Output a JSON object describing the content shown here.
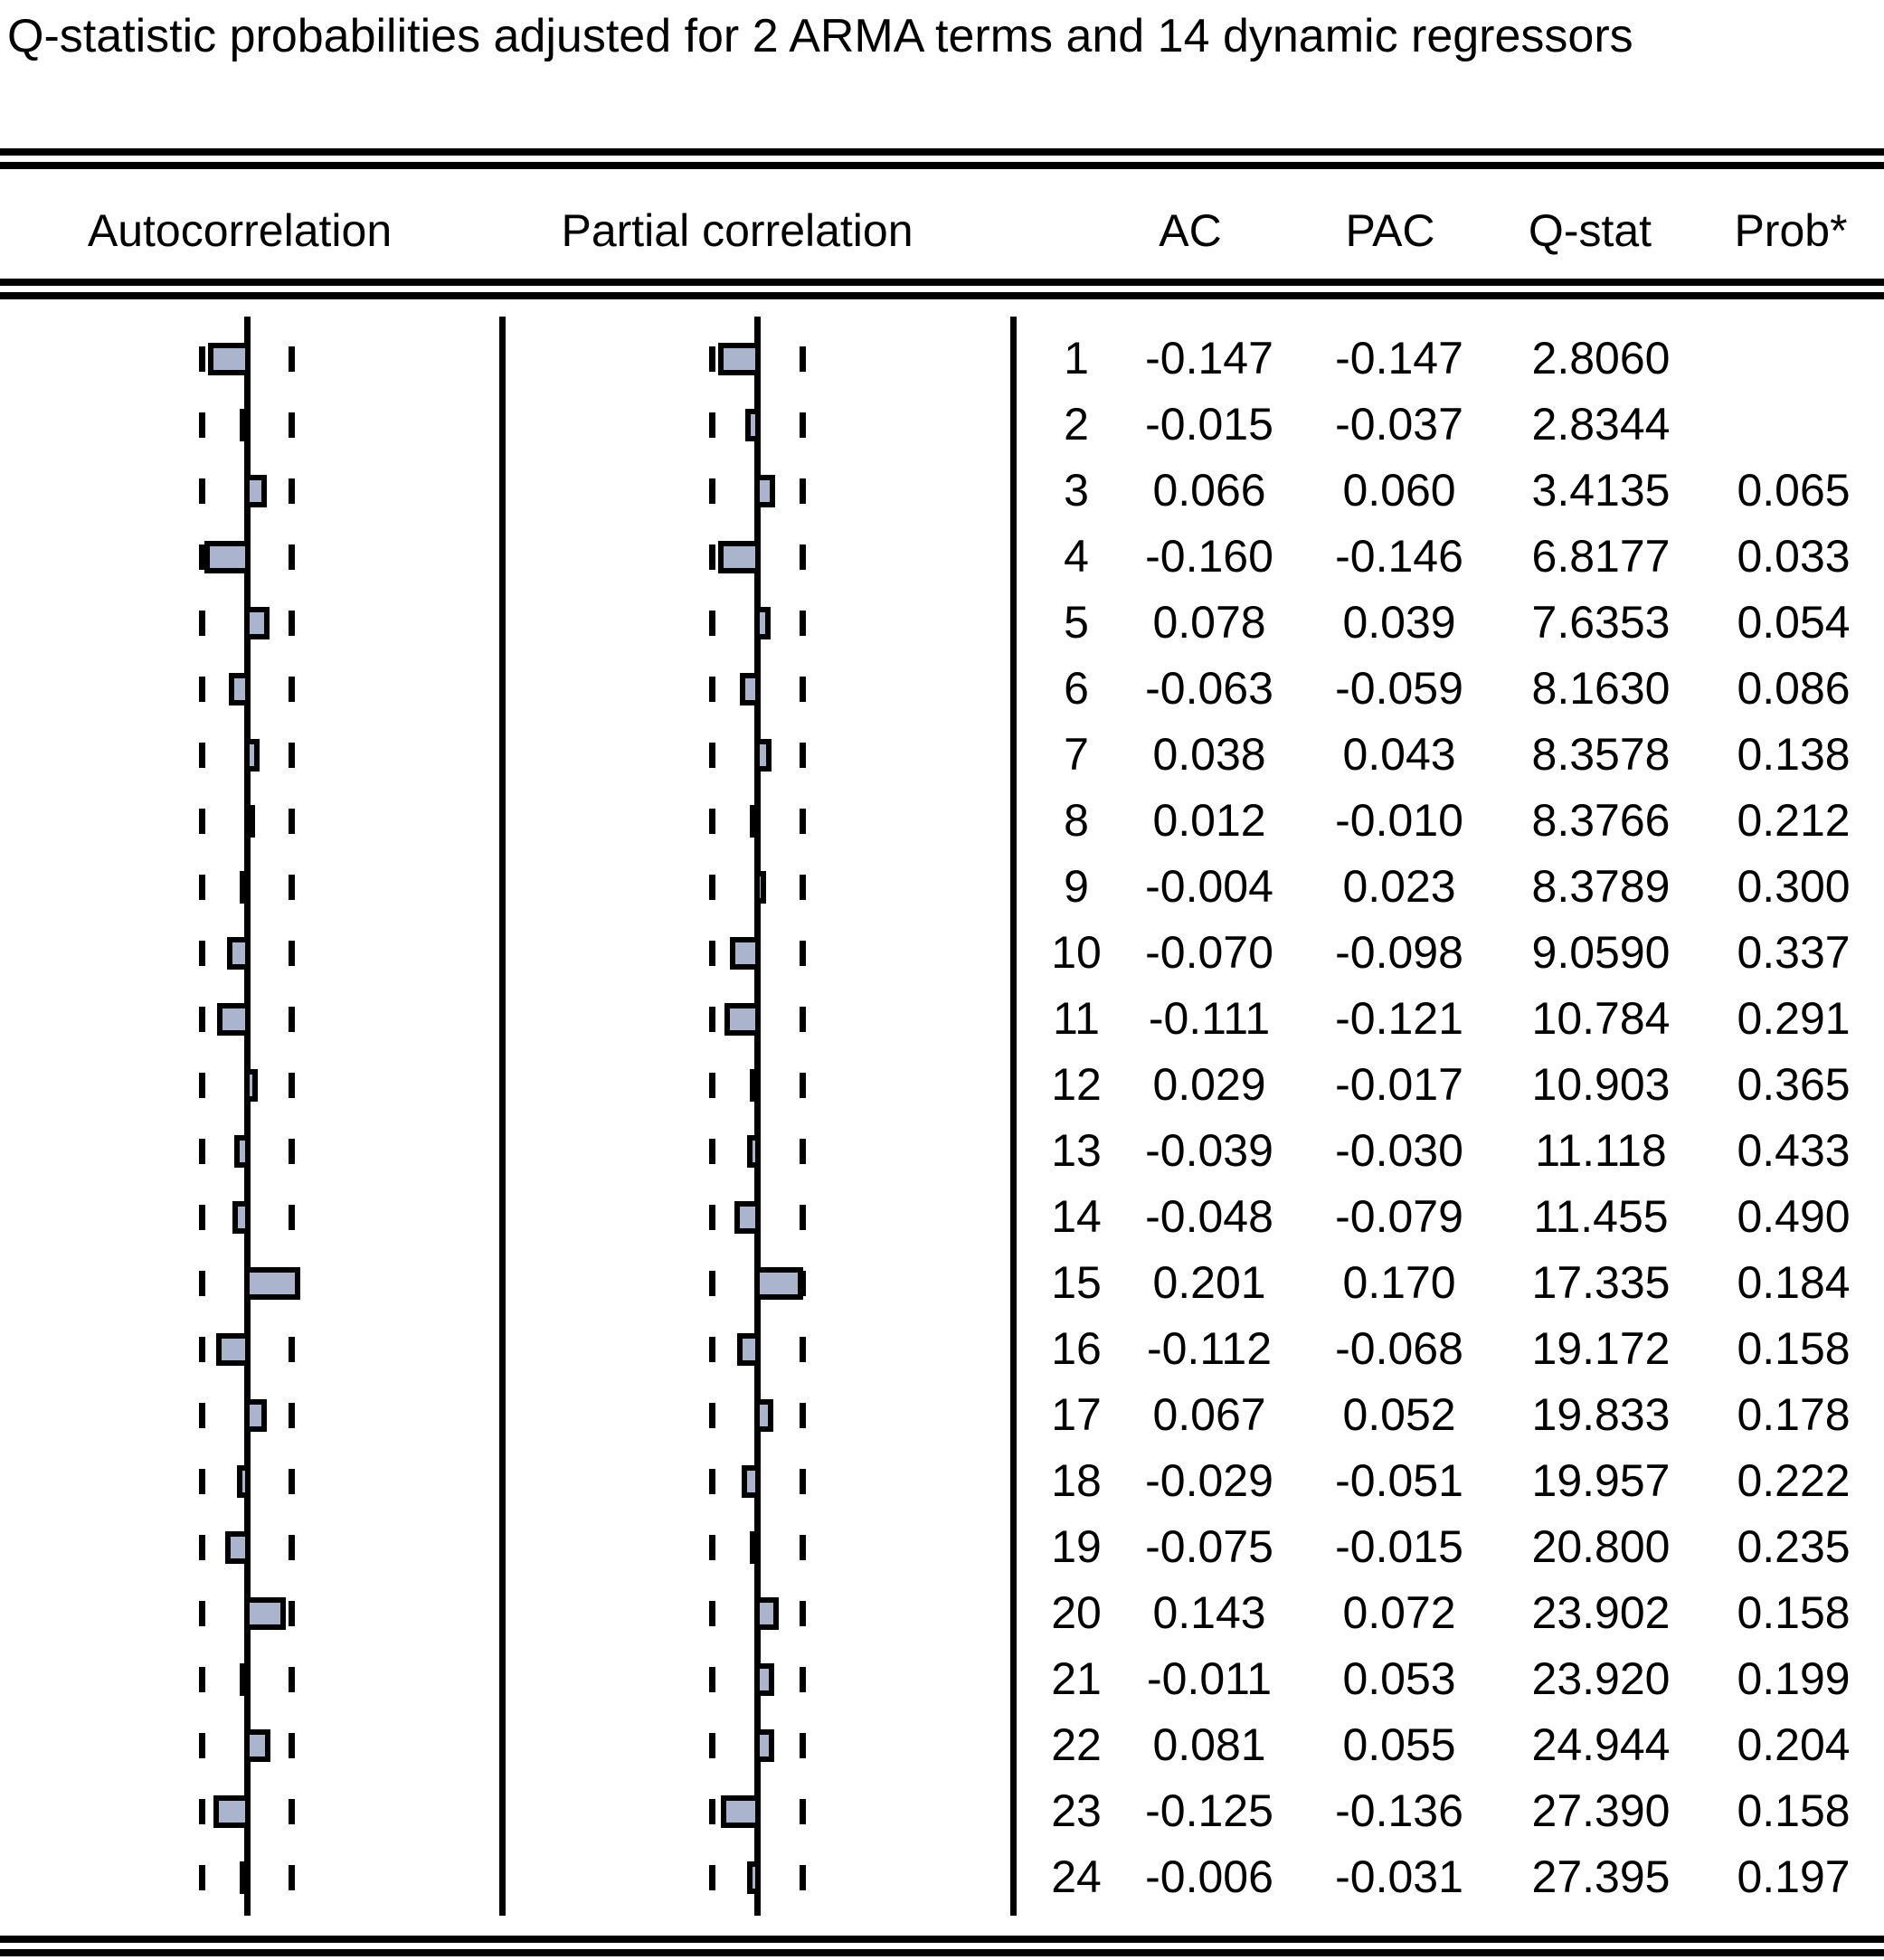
{
  "title": "Q-statistic probabilities adjusted for 2 ARMA terms and 14 dynamic regressors",
  "headers": {
    "autocorrelation": "Autocorrelation",
    "partial_correlation": "Partial correlation",
    "ac": "AC",
    "pac": "PAC",
    "qstat": "Q-stat",
    "prob": "Prob*"
  },
  "colors": {
    "bar_fill": "#aab4cd",
    "bar_border": "#000000",
    "text": "#000000",
    "background": "#ffffff"
  },
  "chart_data": {
    "type": "bar",
    "subtype": "correlogram",
    "orientation": "horizontal",
    "confidence_band_abs": 0.18,
    "lags": [
      1,
      2,
      3,
      4,
      5,
      6,
      7,
      8,
      9,
      10,
      11,
      12,
      13,
      14,
      15,
      16,
      17,
      18,
      19,
      20,
      21,
      22,
      23,
      24
    ],
    "series": [
      {
        "name": "AC",
        "values": [
          "-0.147",
          "-0.015",
          "0.066",
          "-0.160",
          "0.078",
          "-0.063",
          "0.038",
          "0.012",
          "-0.004",
          "-0.070",
          "-0.111",
          "0.029",
          "-0.039",
          "-0.048",
          "0.201",
          "-0.112",
          "0.067",
          "-0.029",
          "-0.075",
          "0.143",
          "-0.011",
          "0.081",
          "-0.125",
          "-0.006"
        ]
      },
      {
        "name": "PAC",
        "values": [
          "-0.147",
          "-0.037",
          "0.060",
          "-0.146",
          "0.039",
          "-0.059",
          "0.043",
          "-0.010",
          "0.023",
          "-0.098",
          "-0.121",
          "-0.017",
          "-0.030",
          "-0.079",
          "0.170",
          "-0.068",
          "0.052",
          "-0.051",
          "-0.015",
          "0.072",
          "0.053",
          "0.055",
          "-0.136",
          "-0.031"
        ]
      },
      {
        "name": "Q-stat",
        "values": [
          "2.8060",
          "2.8344",
          "3.4135",
          "6.8177",
          "7.6353",
          "8.1630",
          "8.3578",
          "8.3766",
          "8.3789",
          "9.0590",
          "10.784",
          "10.903",
          "11.118",
          "11.455",
          "17.335",
          "19.172",
          "19.833",
          "19.957",
          "20.800",
          "23.902",
          "23.920",
          "24.944",
          "27.390",
          "27.395"
        ]
      },
      {
        "name": "Prob*",
        "values": [
          "",
          "",
          "0.065",
          "0.033",
          "0.054",
          "0.086",
          "0.138",
          "0.212",
          "0.300",
          "0.337",
          "0.291",
          "0.365",
          "0.433",
          "0.490",
          "0.184",
          "0.158",
          "0.178",
          "0.222",
          "0.235",
          "0.158",
          "0.199",
          "0.204",
          "0.158",
          "0.197"
        ]
      }
    ]
  }
}
